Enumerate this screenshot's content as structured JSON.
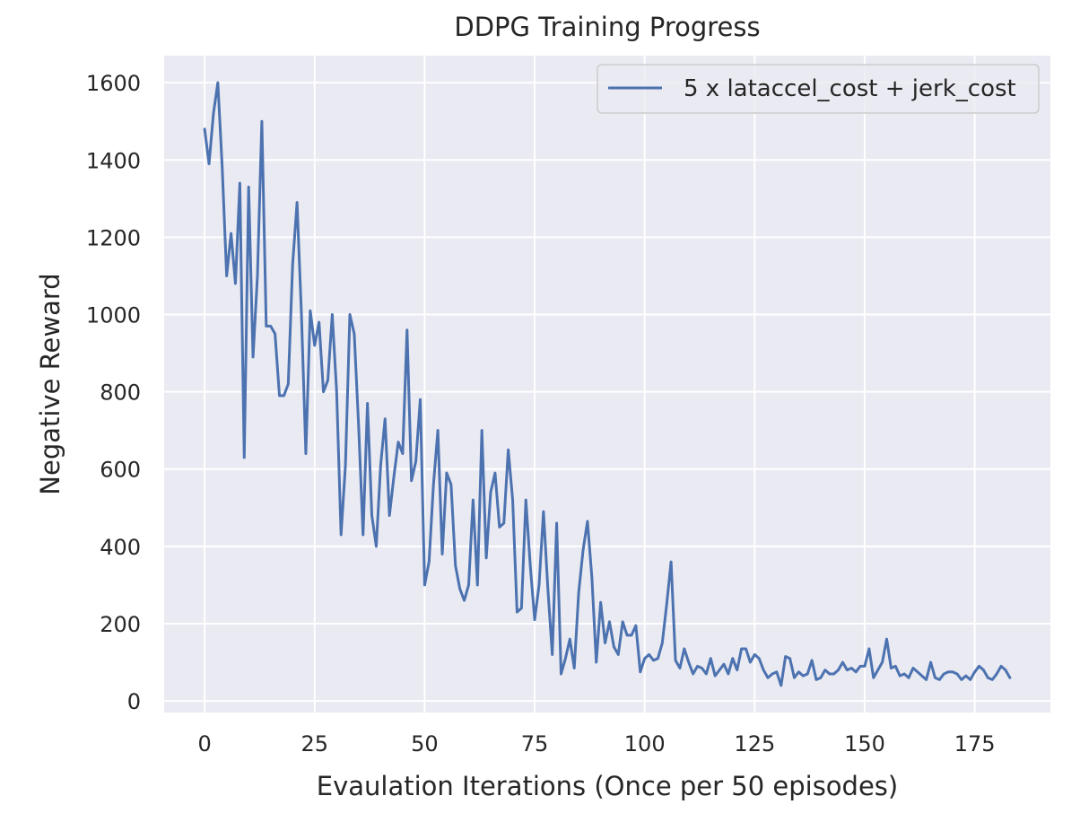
{
  "chart_data": {
    "type": "line",
    "title": "DDPG Training Progress",
    "xlabel": "Evaulation Iterations (Once per 50 episodes)",
    "ylabel": "Negative Reward",
    "xlim": [
      -9.2,
      192.2
    ],
    "ylim": [
      -30,
      1670
    ],
    "xticks": [
      0,
      25,
      50,
      75,
      100,
      125,
      150,
      175
    ],
    "yticks": [
      0,
      200,
      400,
      600,
      800,
      1000,
      1200,
      1400,
      1600
    ],
    "grid": true,
    "legend_position": "top-right",
    "colors": {
      "background": "#eaeaf2",
      "grid": "#ffffff",
      "line": "#4c72b0"
    },
    "series": [
      {
        "name": "5 x lataccel_cost + jerk_cost",
        "x": [
          0,
          1,
          2,
          3,
          4,
          5,
          6,
          7,
          8,
          9,
          10,
          11,
          12,
          13,
          14,
          15,
          16,
          17,
          18,
          19,
          20,
          21,
          22,
          23,
          24,
          25,
          26,
          27,
          28,
          29,
          30,
          31,
          32,
          33,
          34,
          35,
          36,
          37,
          38,
          39,
          40,
          41,
          42,
          43,
          44,
          45,
          46,
          47,
          48,
          49,
          50,
          51,
          52,
          53,
          54,
          55,
          56,
          57,
          58,
          59,
          60,
          61,
          62,
          63,
          64,
          65,
          66,
          67,
          68,
          69,
          70,
          71,
          72,
          73,
          74,
          75,
          76,
          77,
          78,
          79,
          80,
          81,
          82,
          83,
          84,
          85,
          86,
          87,
          88,
          89,
          90,
          91,
          92,
          93,
          94,
          95,
          96,
          97,
          98,
          99,
          100,
          101,
          102,
          103,
          104,
          105,
          106,
          107,
          108,
          109,
          110,
          111,
          112,
          113,
          114,
          115,
          116,
          117,
          118,
          119,
          120,
          121,
          122,
          123,
          124,
          125,
          126,
          127,
          128,
          129,
          130,
          131,
          132,
          133,
          134,
          135,
          136,
          137,
          138,
          139,
          140,
          141,
          142,
          143,
          144,
          145,
          146,
          147,
          148,
          149,
          150,
          151,
          152,
          153,
          154,
          155,
          156,
          157,
          158,
          159,
          160,
          161,
          162,
          163,
          164,
          165,
          166,
          167,
          168,
          169,
          170,
          171,
          172,
          173,
          174,
          175,
          176,
          177,
          178,
          179,
          180,
          181,
          182,
          183
        ],
        "y": [
          1480,
          1390,
          1520,
          1600,
          1380,
          1100,
          1210,
          1080,
          1340,
          630,
          1330,
          890,
          1100,
          1500,
          970,
          970,
          950,
          790,
          790,
          820,
          1130,
          1290,
          1000,
          640,
          1010,
          920,
          980,
          800,
          830,
          1000,
          800,
          430,
          610,
          1000,
          950,
          710,
          430,
          770,
          480,
          400,
          610,
          730,
          480,
          580,
          670,
          640,
          960,
          570,
          620,
          780,
          300,
          360,
          560,
          700,
          380,
          590,
          560,
          350,
          290,
          260,
          300,
          520,
          300,
          700,
          370,
          540,
          590,
          450,
          460,
          650,
          520,
          230,
          240,
          520,
          350,
          210,
          300,
          490,
          290,
          120,
          460,
          70,
          110,
          160,
          85,
          280,
          390,
          465,
          320,
          100,
          255,
          150,
          205,
          140,
          120,
          205,
          170,
          170,
          195,
          75,
          110,
          120,
          105,
          110,
          150,
          250,
          360,
          105,
          85,
          135,
          100,
          70,
          90,
          85,
          70,
          110,
          65,
          80,
          95,
          70,
          110,
          80,
          135,
          135,
          100,
          120,
          110,
          80,
          60,
          70,
          75,
          40,
          115,
          110,
          60,
          75,
          65,
          70,
          105,
          55,
          60,
          80,
          70,
          70,
          80,
          100,
          80,
          85,
          75,
          90,
          90,
          135,
          60,
          80,
          100,
          160,
          85,
          90,
          65,
          70,
          60,
          85,
          75,
          65,
          55,
          100,
          60,
          55,
          70,
          75,
          75,
          70,
          55,
          65,
          55,
          75,
          90,
          80,
          60,
          55,
          70,
          90,
          80,
          60
        ]
      }
    ]
  }
}
